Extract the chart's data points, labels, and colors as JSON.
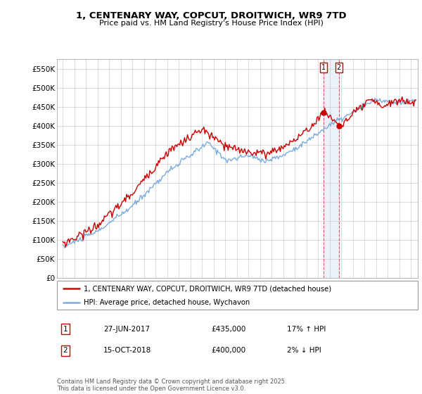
{
  "title_line1": "1, CENTENARY WAY, COPCUT, DROITWICH, WR9 7TD",
  "title_line2": "Price paid vs. HM Land Registry's House Price Index (HPI)",
  "background_color": "#ffffff",
  "grid_color": "#cccccc",
  "red_color": "#cc0000",
  "blue_color": "#7aace0",
  "sale1_date_num": 2017.49,
  "sale1_price": 435000,
  "sale2_date_num": 2018.79,
  "sale2_price": 400000,
  "legend_entry1": "1, CENTENARY WAY, COPCUT, DROITWICH, WR9 7TD (detached house)",
  "legend_entry2": "HPI: Average price, detached house, Wychavon",
  "table_row1": [
    "1",
    "27-JUN-2017",
    "£435,000",
    "17% ↑ HPI"
  ],
  "table_row2": [
    "2",
    "15-OCT-2018",
    "£400,000",
    "2% ↓ HPI"
  ],
  "footer": "Contains HM Land Registry data © Crown copyright and database right 2025.\nThis data is licensed under the Open Government Licence v3.0.",
  "ylim_min": 0,
  "ylim_max": 575000,
  "yticks": [
    0,
    50000,
    100000,
    150000,
    200000,
    250000,
    300000,
    350000,
    400000,
    450000,
    500000,
    550000
  ],
  "ytick_labels": [
    "£0",
    "£50K",
    "£100K",
    "£150K",
    "£200K",
    "£250K",
    "£300K",
    "£350K",
    "£400K",
    "£450K",
    "£500K",
    "£550K"
  ],
  "xlim_min": 1994.5,
  "xlim_max": 2025.6
}
